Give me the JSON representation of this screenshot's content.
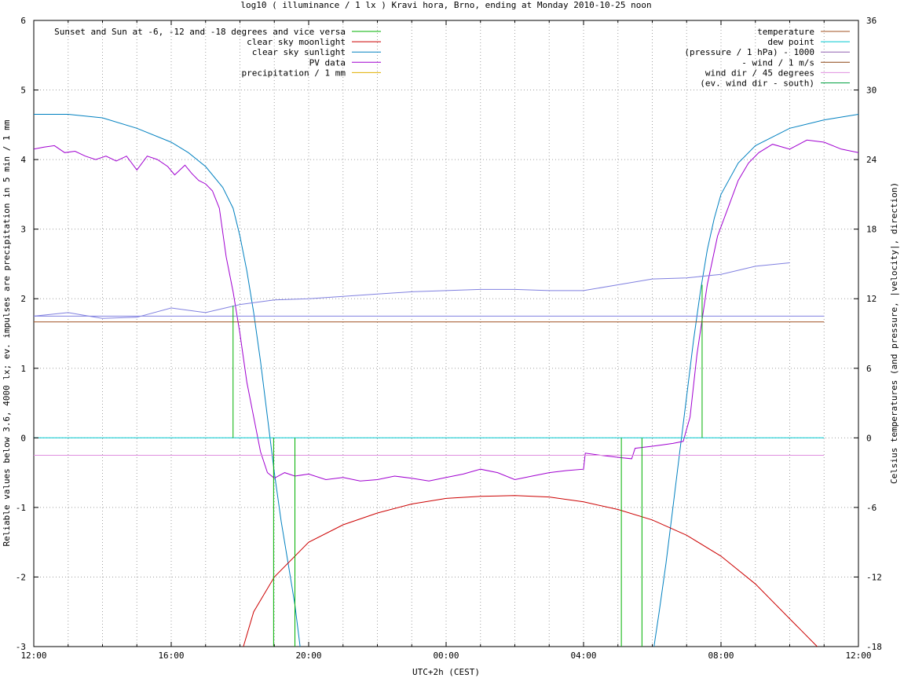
{
  "chart_data": {
    "type": "line",
    "title": "log10 ( illuminance / 1 lx ) Kravi hora, Brno, ending at Monday 2010-10-25 noon",
    "xlabel": "UTC+2h (CEST)",
    "ylabel": "Reliable values below 3.6, 4000 lx; ev. impulses are precipitation in 5 min / 1 mm",
    "y2label": "Celsius temperatures (and pressure, |velocity|, direction)",
    "x_range_hours": [
      0,
      24
    ],
    "ylim": [
      -3,
      6
    ],
    "y2lim": [
      -18,
      36
    ],
    "grid": true,
    "x_ticks": [
      {
        "h": 0,
        "label": "12:00"
      },
      {
        "h": 4,
        "label": "16:00"
      },
      {
        "h": 8,
        "label": "20:00"
      },
      {
        "h": 12,
        "label": "00:00"
      },
      {
        "h": 16,
        "label": "04:00"
      },
      {
        "h": 20,
        "label": "08:00"
      },
      {
        "h": 24,
        "label": "12:00"
      }
    ],
    "y_ticks": [
      "-3",
      "-2",
      "-1",
      "0",
      "1",
      "2",
      "3",
      "4",
      "5",
      "6"
    ],
    "y2_ticks": [
      "-18",
      "-12",
      "-6",
      "0",
      "6",
      "12",
      "18",
      "24",
      "30",
      "36"
    ],
    "legend_left": {
      "placement": "top-left",
      "entries": [
        {
          "label": "Sunset and Sun at -6, -12 and -18 degrees and vice versa",
          "color": "#00b000"
        },
        {
          "label": "clear sky moonlight",
          "color": "#cc0000"
        },
        {
          "label": "clear sky sunlight",
          "color": "#0080c0"
        },
        {
          "label": "PV data",
          "color": "#a000d0"
        },
        {
          "label": "precipitation / 1 mm",
          "color": "#e0b000"
        }
      ]
    },
    "legend_right": {
      "placement": "top-right",
      "entries": [
        {
          "label": "temperature",
          "color": "#a05020"
        },
        {
          "label": "dew point",
          "color": "#00c8d0"
        },
        {
          "label": "(pressure / 1 hPa) - 1000",
          "color": "#9060b0"
        },
        {
          "label": "- wind / 1 m/s",
          "color": "#8b4513"
        },
        {
          "label": "wind dir / 45 degrees",
          "color": "#e090e0"
        },
        {
          "label": "(ev. wind dir - south)",
          "color": "#00a040"
        }
      ]
    },
    "series": [
      {
        "name": "clear sky sunlight",
        "axis": "y1",
        "color": "#0080c0",
        "points": [
          [
            0,
            4.65
          ],
          [
            1,
            4.65
          ],
          [
            2,
            4.6
          ],
          [
            3,
            4.45
          ],
          [
            4,
            4.25
          ],
          [
            4.5,
            4.1
          ],
          [
            5,
            3.9
          ],
          [
            5.5,
            3.6
          ],
          [
            5.8,
            3.3
          ],
          [
            6,
            2.9
          ],
          [
            6.2,
            2.4
          ],
          [
            6.4,
            1.8
          ],
          [
            6.6,
            1.1
          ],
          [
            6.8,
            0.3
          ],
          [
            7,
            -0.5
          ],
          [
            7.2,
            -1.2
          ],
          [
            7.4,
            -1.8
          ],
          [
            7.6,
            -2.4
          ],
          [
            7.75,
            -3.0
          ]
        ]
      },
      {
        "name": "clear sky sunlight",
        "axis": "y1",
        "color": "#0080c0",
        "points": [
          [
            18.05,
            -3.0
          ],
          [
            18.2,
            -2.5
          ],
          [
            18.4,
            -1.8
          ],
          [
            18.6,
            -1.0
          ],
          [
            18.8,
            -0.2
          ],
          [
            19,
            0.6
          ],
          [
            19.2,
            1.4
          ],
          [
            19.4,
            2.1
          ],
          [
            19.6,
            2.7
          ],
          [
            19.8,
            3.15
          ],
          [
            20,
            3.5
          ],
          [
            20.5,
            3.95
          ],
          [
            21,
            4.2
          ],
          [
            22,
            4.45
          ],
          [
            23,
            4.57
          ],
          [
            24,
            4.65
          ]
        ]
      },
      {
        "name": "clear sky moonlight",
        "axis": "y1",
        "color": "#cc0000",
        "points": [
          [
            6.1,
            -3.0
          ],
          [
            6.4,
            -2.5
          ],
          [
            7,
            -2.0
          ],
          [
            8,
            -1.5
          ],
          [
            9,
            -1.25
          ],
          [
            10,
            -1.08
          ],
          [
            11,
            -0.95
          ],
          [
            12,
            -0.87
          ],
          [
            13,
            -0.84
          ],
          [
            14,
            -0.83
          ],
          [
            15,
            -0.85
          ],
          [
            16,
            -0.92
          ],
          [
            17,
            -1.03
          ],
          [
            18,
            -1.18
          ],
          [
            19,
            -1.4
          ],
          [
            20,
            -1.7
          ],
          [
            21,
            -2.1
          ],
          [
            22,
            -2.6
          ],
          [
            22.8,
            -3.0
          ]
        ]
      },
      {
        "name": "PV data",
        "axis": "y1",
        "color": "#a000d0",
        "points": [
          [
            0,
            4.15
          ],
          [
            0.3,
            4.18
          ],
          [
            0.6,
            4.2
          ],
          [
            0.9,
            4.1
          ],
          [
            1.2,
            4.12
          ],
          [
            1.5,
            4.05
          ],
          [
            1.8,
            4.0
          ],
          [
            2.1,
            4.05
          ],
          [
            2.4,
            3.98
          ],
          [
            2.7,
            4.05
          ],
          [
            3,
            3.85
          ],
          [
            3.3,
            4.05
          ],
          [
            3.6,
            4.0
          ],
          [
            3.9,
            3.9
          ],
          [
            4.1,
            3.78
          ],
          [
            4.4,
            3.92
          ],
          [
            4.6,
            3.8
          ],
          [
            4.8,
            3.7
          ],
          [
            5,
            3.65
          ],
          [
            5.2,
            3.55
          ],
          [
            5.4,
            3.3
          ],
          [
            5.6,
            2.6
          ],
          [
            5.8,
            2.1
          ],
          [
            6,
            1.5
          ],
          [
            6.2,
            0.8
          ],
          [
            6.4,
            0.3
          ],
          [
            6.6,
            -0.2
          ],
          [
            6.8,
            -0.5
          ],
          [
            7,
            -0.58
          ],
          [
            7.3,
            -0.5
          ],
          [
            7.6,
            -0.55
          ],
          [
            8,
            -0.52
          ],
          [
            8.5,
            -0.6
          ],
          [
            9,
            -0.57
          ],
          [
            9.5,
            -0.62
          ],
          [
            10,
            -0.6
          ],
          [
            10.5,
            -0.55
          ],
          [
            11,
            -0.58
          ],
          [
            11.5,
            -0.62
          ],
          [
            12,
            -0.57
          ],
          [
            12.5,
            -0.52
          ],
          [
            13,
            -0.45
          ],
          [
            13.5,
            -0.5
          ],
          [
            14,
            -0.6
          ],
          [
            14.5,
            -0.55
          ],
          [
            15,
            -0.5
          ],
          [
            15.5,
            -0.47
          ],
          [
            16,
            -0.45
          ],
          [
            16.05,
            -0.22
          ],
          [
            16.5,
            -0.25
          ],
          [
            17,
            -0.28
          ],
          [
            17.4,
            -0.3
          ],
          [
            17.5,
            -0.15
          ],
          [
            18,
            -0.12
          ],
          [
            18.3,
            -0.1
          ],
          [
            18.6,
            -0.08
          ],
          [
            18.9,
            -0.05
          ],
          [
            19.1,
            0.3
          ],
          [
            19.3,
            1.2
          ],
          [
            19.6,
            2.2
          ],
          [
            19.9,
            2.9
          ],
          [
            20.2,
            3.3
          ],
          [
            20.5,
            3.7
          ],
          [
            20.8,
            3.95
          ],
          [
            21.1,
            4.1
          ],
          [
            21.5,
            4.22
          ],
          [
            22,
            4.15
          ],
          [
            22.5,
            4.28
          ],
          [
            23,
            4.25
          ],
          [
            23.5,
            4.15
          ],
          [
            24,
            4.1
          ]
        ]
      },
      {
        "name": "dew point",
        "axis": "y2",
        "color": "#00c8d0",
        "points": [
          [
            0,
            0
          ],
          [
            23,
            0
          ]
        ]
      },
      {
        "name": "temperature",
        "axis": "y2",
        "color": "#a05020",
        "points": [
          [
            0,
            10
          ],
          [
            23,
            10
          ]
        ]
      },
      {
        "name": "(pressure / 1 hPa) - 1000",
        "axis": "y2",
        "color": "#8080e0",
        "points": [
          [
            0,
            10.5
          ],
          [
            1,
            10.8
          ],
          [
            2,
            10.3
          ],
          [
            3,
            10.4
          ],
          [
            4,
            11.2
          ],
          [
            5,
            10.8
          ],
          [
            6,
            11.5
          ],
          [
            7,
            11.9
          ],
          [
            8,
            12.0
          ],
          [
            9,
            12.2
          ],
          [
            10,
            12.4
          ],
          [
            11,
            12.6
          ],
          [
            12,
            12.7
          ],
          [
            13,
            12.8
          ],
          [
            14,
            12.8
          ],
          [
            15,
            12.7
          ],
          [
            16,
            12.7
          ],
          [
            17,
            13.2
          ],
          [
            18,
            13.7
          ],
          [
            19,
            13.8
          ],
          [
            20,
            14.1
          ],
          [
            21,
            14.8
          ],
          [
            22,
            15.1
          ]
        ]
      },
      {
        "name": "(pressure / 1 hPa) - 1000",
        "axis": "y2",
        "color": "#8080e0",
        "points": [
          [
            0,
            10.5
          ],
          [
            23,
            10.5
          ]
        ]
      },
      {
        "name": "wind dir / 45 degrees",
        "axis": "y2",
        "color": "#e090e0",
        "points": [
          [
            0,
            -1.5
          ],
          [
            23,
            -1.5
          ]
        ]
      }
    ],
    "sun_markers": [
      {
        "h": 5.8,
        "top": 1.9
      },
      {
        "h": 6.98,
        "top": -3.0
      },
      {
        "h": 7.6,
        "top": -3.0
      },
      {
        "h": 17.1,
        "top": -3.0
      },
      {
        "h": 17.7,
        "top": -3.0
      },
      {
        "h": 19.45,
        "top": 2.2
      }
    ]
  }
}
